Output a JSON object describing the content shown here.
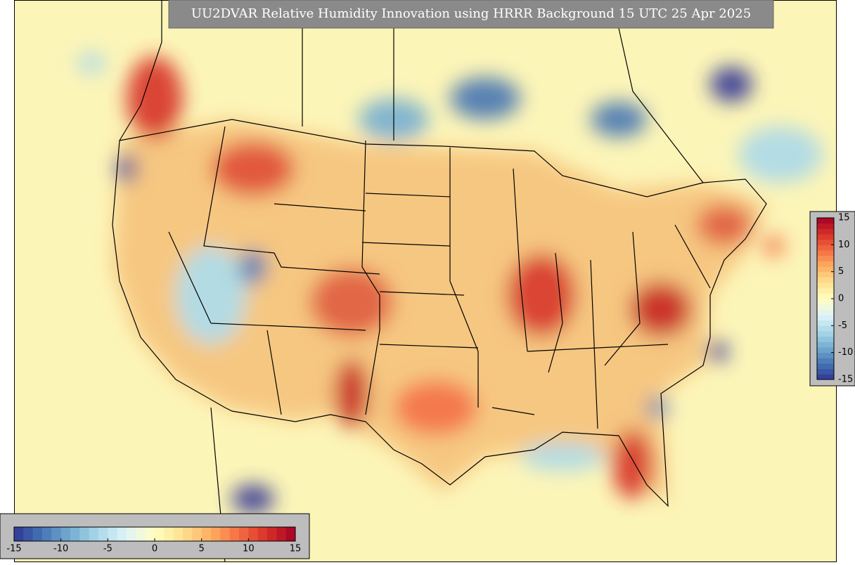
{
  "title": "UU2DVAR Relative Humidity Innovation using HRRR Background 15 UTC 25 Apr 2025",
  "colorbars": [
    {
      "orientation": "horizontal",
      "lim": [
        -15,
        15
      ],
      "ticks": [
        -15,
        -10,
        -5,
        0,
        5,
        10,
        15
      ]
    },
    {
      "orientation": "vertical",
      "lim": [
        -15,
        15
      ],
      "ticks": [
        -15,
        -10,
        -5,
        0,
        5,
        10,
        15
      ]
    }
  ],
  "colormap": [
    "#313695",
    "#4575b4",
    "#74add1",
    "#abd9e9",
    "#e0f3f8",
    "#ffffbf",
    "#fee090",
    "#fdae61",
    "#f46d43",
    "#d73027",
    "#a50026"
  ]
}
